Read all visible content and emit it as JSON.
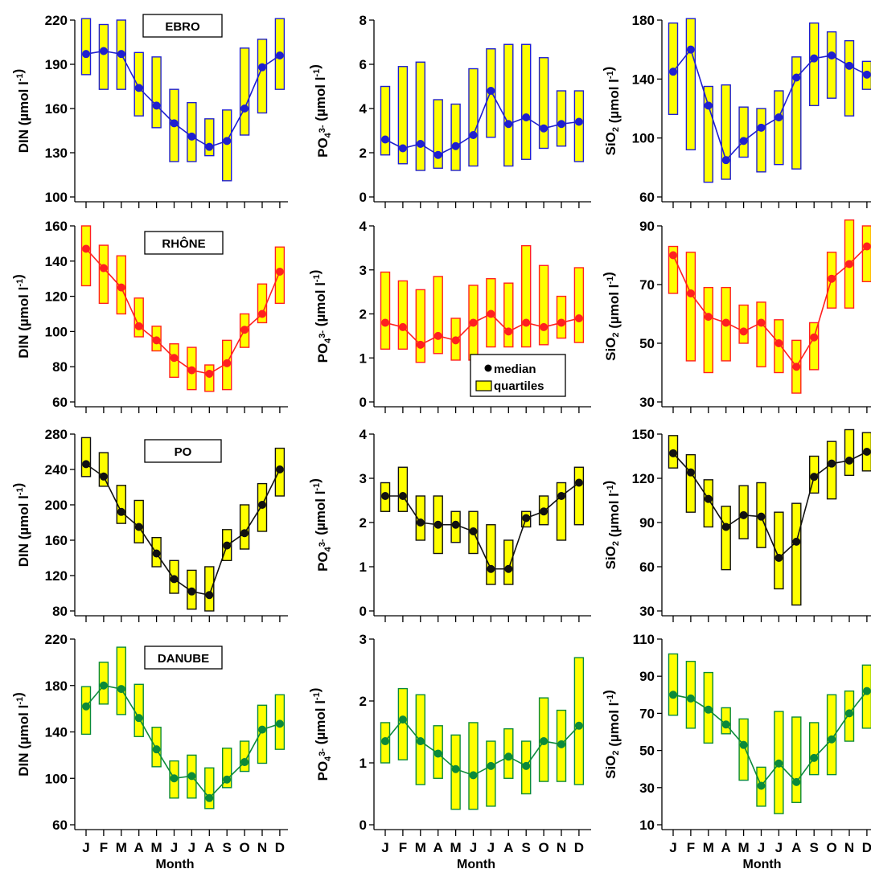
{
  "chart_data": {
    "type": "box",
    "months": [
      "J",
      "F",
      "M",
      "A",
      "M",
      "J",
      "J",
      "A",
      "S",
      "O",
      "N",
      "D"
    ],
    "xlabel": "Month",
    "legend": {
      "median_label": "median",
      "quartiles_label": "quartiles"
    },
    "colors": {
      "fill": "#ffff00",
      "EBRO": "#1f1fd0",
      "RHÔNE": "#ff2020",
      "PO": "#111111",
      "DANUBE": "#0b8a3a"
    },
    "rows": [
      {
        "river": "EBRO",
        "panels": [
          {
            "ylabel": "DIN (µmol l⁻¹)",
            "ylim": [
              100,
              220
            ],
            "ticks": [
              100,
              130,
              160,
              190,
              220
            ],
            "median": [
              197,
              199,
              197,
              174,
              162,
              150,
              141,
              134,
              138,
              160,
              188,
              196
            ],
            "q1": [
              183,
              173,
              173,
              155,
              147,
              124,
              124,
              128,
              111,
              142,
              157,
              173
            ],
            "q3": [
              221,
              217,
              220,
              198,
              195,
              173,
              164,
              153,
              159,
              201,
              207,
              221
            ]
          },
          {
            "ylabel": "PO₄³⁻ (µmol l⁻¹)",
            "ylim": [
              0,
              8
            ],
            "ticks": [
              0,
              2,
              4,
              6,
              8
            ],
            "median": [
              2.6,
              2.2,
              2.4,
              1.9,
              2.3,
              2.8,
              4.8,
              3.3,
              3.6,
              3.1,
              3.3,
              3.4
            ],
            "q1": [
              1.9,
              1.5,
              1.2,
              1.3,
              1.2,
              1.4,
              2.7,
              1.4,
              1.7,
              2.2,
              2.3,
              1.6
            ],
            "q3": [
              5.0,
              5.9,
              6.1,
              4.4,
              4.2,
              5.8,
              6.7,
              6.9,
              6.9,
              6.3,
              4.8,
              4.8
            ]
          },
          {
            "ylabel": "SiO₂ (µmol l⁻¹)",
            "ylim": [
              60,
              180
            ],
            "ticks": [
              60,
              100,
              140,
              180
            ],
            "median": [
              145,
              160,
              122,
              85,
              98,
              107,
              114,
              141,
              154,
              156,
              149,
              143
            ],
            "q1": [
              116,
              92,
              70,
              72,
              87,
              77,
              82,
              79,
              122,
              127,
              115,
              133
            ],
            "q3": [
              178,
              181,
              135,
              136,
              121,
              120,
              132,
              155,
              178,
              172,
              166,
              152
            ]
          }
        ]
      },
      {
        "river": "RHÔNE",
        "panels": [
          {
            "ylabel": "DIN (µmol l⁻¹)",
            "ylim": [
              60,
              160
            ],
            "ticks": [
              60,
              80,
              100,
              120,
              140,
              160
            ],
            "median": [
              147,
              136,
              125,
              103,
              95,
              85,
              78,
              76,
              82,
              101,
              110,
              134
            ],
            "q1": [
              126,
              116,
              110,
              97,
              89,
              74,
              67,
              66,
              67,
              91,
              105,
              116
            ],
            "q3": [
              160,
              149,
              143,
              119,
              103,
              93,
              91,
              81,
              95,
              110,
              127,
              148
            ]
          },
          {
            "ylabel": "PO₄³⁻ (µmol l⁻¹)",
            "ylim": [
              0,
              4
            ],
            "ticks": [
              0,
              1,
              2,
              3,
              4
            ],
            "median": [
              1.8,
              1.7,
              1.3,
              1.5,
              1.4,
              1.8,
              2.0,
              1.6,
              1.8,
              1.7,
              1.8,
              1.9
            ],
            "q1": [
              1.2,
              1.2,
              0.9,
              1.1,
              0.95,
              0.95,
              1.25,
              1.25,
              1.25,
              1.3,
              1.45,
              1.35
            ],
            "q3": [
              2.95,
              2.75,
              2.55,
              2.85,
              1.9,
              2.65,
              2.8,
              2.7,
              3.55,
              3.1,
              2.4,
              3.05
            ]
          },
          {
            "ylabel": "SiO₂ (µmol l⁻¹)",
            "ylim": [
              30,
              90
            ],
            "ticks": [
              30,
              50,
              70,
              90
            ],
            "median": [
              80,
              67,
              59,
              57,
              54,
              57,
              50,
              42,
              52,
              72,
              77,
              83
            ],
            "q1": [
              67,
              44,
              40,
              44,
              50,
              42,
              40,
              33,
              41,
              62,
              62,
              71
            ],
            "q3": [
              83,
              81,
              69,
              69,
              63,
              64,
              58,
              51,
              57,
              81,
              92,
              90
            ]
          }
        ]
      },
      {
        "river": "PO",
        "panels": [
          {
            "ylabel": "DIN (µmol l⁻¹)",
            "ylim": [
              80,
              280
            ],
            "ticks": [
              80,
              120,
              160,
              200,
              240,
              280
            ],
            "median": [
              246,
              232,
              192,
              175,
              145,
              116,
              102,
              98,
              154,
              168,
              200,
              240
            ],
            "q1": [
              232,
              221,
              179,
              157,
              130,
              100,
              82,
              80,
              137,
              150,
              170,
              210
            ],
            "q3": [
              276,
              259,
              222,
              205,
              163,
              137,
              126,
              130,
              172,
              200,
              224,
              264
            ]
          },
          {
            "ylabel": "PO₄³⁻ (µmol l⁻¹)",
            "ylim": [
              0,
              4
            ],
            "ticks": [
              0,
              1,
              2,
              3,
              4
            ],
            "median": [
              2.6,
              2.6,
              2.0,
              1.95,
              1.95,
              1.8,
              0.95,
              0.95,
              2.1,
              2.25,
              2.6,
              2.9
            ],
            "q1": [
              2.25,
              2.25,
              1.6,
              1.3,
              1.55,
              1.3,
              0.6,
              0.6,
              1.9,
              1.95,
              1.6,
              1.95
            ],
            "q3": [
              2.9,
              3.25,
              2.6,
              2.6,
              2.25,
              2.25,
              1.95,
              1.6,
              2.25,
              2.6,
              2.9,
              3.25
            ]
          },
          {
            "ylabel": "SiO₂ (µmol l⁻¹)",
            "ylim": [
              30,
              150
            ],
            "ticks": [
              30,
              60,
              90,
              120,
              150
            ],
            "median": [
              137,
              124,
              106,
              87,
              95,
              94,
              66,
              77,
              121,
              130,
              132,
              138
            ],
            "q1": [
              127,
              97,
              87,
              58,
              79,
              73,
              45,
              34,
              110,
              106,
              122,
              125
            ],
            "q3": [
              149,
              136,
              119,
              101,
              115,
              117,
              97,
              103,
              135,
              145,
              153,
              151
            ]
          }
        ]
      },
      {
        "river": "DANUBE",
        "panels": [
          {
            "ylabel": "DIN (µmol l⁻¹)",
            "ylim": [
              60,
              220
            ],
            "ticks": [
              60,
              100,
              140,
              180,
              220
            ],
            "median": [
              162,
              180,
              177,
              152,
              125,
              100,
              102,
              83,
              99,
              114,
              142,
              147
            ],
            "q1": [
              138,
              164,
              155,
              136,
              110,
              83,
              83,
              74,
              92,
              106,
              113,
              125
            ],
            "q3": [
              179,
              200,
              213,
              181,
              144,
              115,
              120,
              109,
              126,
              132,
              163,
              172
            ]
          },
          {
            "ylabel": "PO₄³⁻ (µmol l⁻¹)",
            "ylim": [
              0,
              3
            ],
            "ticks": [
              0,
              1,
              2,
              3
            ],
            "median": [
              1.35,
              1.7,
              1.35,
              1.15,
              0.9,
              0.8,
              0.95,
              1.1,
              0.95,
              1.35,
              1.3,
              1.6
            ],
            "q1": [
              1.0,
              1.05,
              0.65,
              0.75,
              0.25,
              0.25,
              0.3,
              0.75,
              0.5,
              0.7,
              0.7,
              0.65
            ],
            "q3": [
              1.65,
              2.2,
              2.1,
              1.6,
              1.45,
              1.65,
              1.35,
              1.55,
              1.35,
              2.05,
              1.85,
              2.7
            ]
          },
          {
            "ylabel": "SiO₂ (µmol l⁻¹)",
            "ylim": [
              10,
              110
            ],
            "ticks": [
              10,
              30,
              50,
              70,
              90,
              110
            ],
            "median": [
              80,
              78,
              72,
              64,
              53,
              31,
              43,
              33,
              46,
              56,
              70,
              82
            ],
            "q1": [
              69,
              62,
              54,
              59,
              34,
              20,
              16,
              22,
              37,
              37,
              55,
              62
            ],
            "q3": [
              102,
              98,
              92,
              73,
              67,
              41,
              71,
              68,
              65,
              80,
              82,
              96
            ]
          }
        ]
      }
    ]
  }
}
